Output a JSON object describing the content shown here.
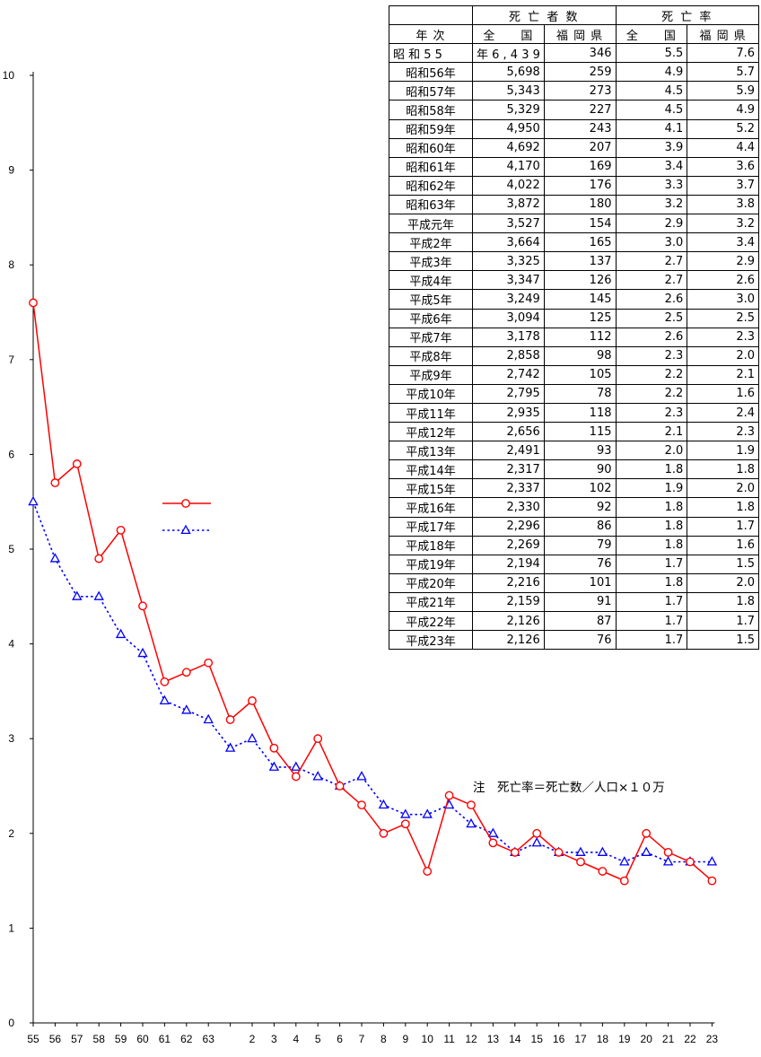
{
  "table": {
    "header_deaths": "死 亡 者 数",
    "header_rate": "死 亡 率",
    "col_year": "年 次",
    "col_nation": "全　　国",
    "col_fukuoka": "福 岡 県",
    "rows": [
      {
        "year": "昭 和 5 5",
        "nation": "年 6 , 4 3 9",
        "fukuoka": "346",
        "rate_nation": "5.5",
        "rate_fukuoka": "7.6"
      },
      {
        "year": "昭和56年",
        "nation": "5,698",
        "fukuoka": "259",
        "rate_nation": "4.9",
        "rate_fukuoka": "5.7"
      },
      {
        "year": "昭和57年",
        "nation": "5,343",
        "fukuoka": "273",
        "rate_nation": "4.5",
        "rate_fukuoka": "5.9"
      },
      {
        "year": "昭和58年",
        "nation": "5,329",
        "fukuoka": "227",
        "rate_nation": "4.5",
        "rate_fukuoka": "4.9"
      },
      {
        "year": "昭和59年",
        "nation": "4,950",
        "fukuoka": "243",
        "rate_nation": "4.1",
        "rate_fukuoka": "5.2"
      },
      {
        "year": "昭和60年",
        "nation": "4,692",
        "fukuoka": "207",
        "rate_nation": "3.9",
        "rate_fukuoka": "4.4"
      },
      {
        "year": "昭和61年",
        "nation": "4,170",
        "fukuoka": "169",
        "rate_nation": "3.4",
        "rate_fukuoka": "3.6"
      },
      {
        "year": "昭和62年",
        "nation": "4,022",
        "fukuoka": "176",
        "rate_nation": "3.3",
        "rate_fukuoka": "3.7"
      },
      {
        "year": "昭和63年",
        "nation": "3,872",
        "fukuoka": "180",
        "rate_nation": "3.2",
        "rate_fukuoka": "3.8"
      },
      {
        "year": "平成元年",
        "nation": "3,527",
        "fukuoka": "154",
        "rate_nation": "2.9",
        "rate_fukuoka": "3.2"
      },
      {
        "year": "平成2年",
        "nation": "3,664",
        "fukuoka": "165",
        "rate_nation": "3.0",
        "rate_fukuoka": "3.4"
      },
      {
        "year": "平成3年",
        "nation": "3,325",
        "fukuoka": "137",
        "rate_nation": "2.7",
        "rate_fukuoka": "2.9"
      },
      {
        "year": "平成4年",
        "nation": "3,347",
        "fukuoka": "126",
        "rate_nation": "2.7",
        "rate_fukuoka": "2.6"
      },
      {
        "year": "平成5年",
        "nation": "3,249",
        "fukuoka": "145",
        "rate_nation": "2.6",
        "rate_fukuoka": "3.0"
      },
      {
        "year": "平成6年",
        "nation": "3,094",
        "fukuoka": "125",
        "rate_nation": "2.5",
        "rate_fukuoka": "2.5"
      },
      {
        "year": "平成7年",
        "nation": "3,178",
        "fukuoka": "112",
        "rate_nation": "2.6",
        "rate_fukuoka": "2.3"
      },
      {
        "year": "平成8年",
        "nation": "2,858",
        "fukuoka": "98",
        "rate_nation": "2.3",
        "rate_fukuoka": "2.0"
      },
      {
        "year": "平成9年",
        "nation": "2,742",
        "fukuoka": "105",
        "rate_nation": "2.2",
        "rate_fukuoka": "2.1"
      },
      {
        "year": "平成10年",
        "nation": "2,795",
        "fukuoka": "78",
        "rate_nation": "2.2",
        "rate_fukuoka": "1.6"
      },
      {
        "year": "平成11年",
        "nation": "2,935",
        "fukuoka": "118",
        "rate_nation": "2.3",
        "rate_fukuoka": "2.4"
      },
      {
        "year": "平成12年",
        "nation": "2,656",
        "fukuoka": "115",
        "rate_nation": "2.1",
        "rate_fukuoka": "2.3"
      },
      {
        "year": "平成13年",
        "nation": "2,491",
        "fukuoka": "93",
        "rate_nation": "2.0",
        "rate_fukuoka": "1.9"
      },
      {
        "year": "平成14年",
        "nation": "2,317",
        "fukuoka": "90",
        "rate_nation": "1.8",
        "rate_fukuoka": "1.8"
      },
      {
        "year": "平成15年",
        "nation": "2,337",
        "fukuoka": "102",
        "rate_nation": "1.9",
        "rate_fukuoka": "2.0"
      },
      {
        "year": "平成16年",
        "nation": "2,330",
        "fukuoka": "92",
        "rate_nation": "1.8",
        "rate_fukuoka": "1.8"
      },
      {
        "year": "平成17年",
        "nation": "2,296",
        "fukuoka": "86",
        "rate_nation": "1.8",
        "rate_fukuoka": "1.7"
      },
      {
        "year": "平成18年",
        "nation": "2,269",
        "fukuoka": "79",
        "rate_nation": "1.8",
        "rate_fukuoka": "1.6"
      },
      {
        "year": "平成19年",
        "nation": "2,194",
        "fukuoka": "76",
        "rate_nation": "1.7",
        "rate_fukuoka": "1.5"
      },
      {
        "year": "平成20年",
        "nation": "2,216",
        "fukuoka": "101",
        "rate_nation": "1.8",
        "rate_fukuoka": "2.0"
      },
      {
        "year": "平成21年",
        "nation": "2,159",
        "fukuoka": "91",
        "rate_nation": "1.7",
        "rate_fukuoka": "1.8"
      },
      {
        "year": "平成22年",
        "nation": "2,126",
        "fukuoka": "87",
        "rate_nation": "1.7",
        "rate_fukuoka": "1.7"
      },
      {
        "year": "平成23年",
        "nation": "2,126",
        "fukuoka": "76",
        "rate_nation": "1.7",
        "rate_fukuoka": "1.5"
      }
    ]
  },
  "note": "注　死亡率＝死亡数／人口×１０万",
  "chart_data": {
    "type": "line",
    "title": "",
    "xlabel": "",
    "ylabel": "",
    "ylim": [
      0,
      10
    ],
    "yticks": [
      0,
      1,
      2,
      3,
      4,
      5,
      6,
      7,
      8,
      9,
      10
    ],
    "x": [
      "55",
      "56",
      "57",
      "58",
      "59",
      "60",
      "61",
      "62",
      "63",
      "",
      "2",
      "3",
      "4",
      "5",
      "6",
      "7",
      "8",
      "9",
      "10",
      "11",
      "12",
      "13",
      "14",
      "15",
      "16",
      "17",
      "18",
      "19",
      "20",
      "21",
      "22",
      "23"
    ],
    "grid": false,
    "legend_position": "left-middle",
    "series": [
      {
        "key": "fukuoka",
        "marker": "circle",
        "line": "solid",
        "color": "#ff0000",
        "values": [
          7.6,
          5.7,
          5.9,
          4.9,
          5.2,
          4.4,
          3.6,
          3.7,
          3.8,
          3.2,
          3.4,
          2.9,
          2.6,
          3.0,
          2.5,
          2.3,
          2.0,
          2.1,
          1.6,
          2.4,
          2.3,
          1.9,
          1.8,
          2.0,
          1.8,
          1.7,
          1.6,
          1.5,
          2.0,
          1.8,
          1.7,
          1.5
        ]
      },
      {
        "key": "nation",
        "marker": "triangle",
        "line": "dotted",
        "color": "#0000ff",
        "values": [
          5.5,
          4.9,
          4.5,
          4.5,
          4.1,
          3.9,
          3.4,
          3.3,
          3.2,
          2.9,
          3.0,
          2.7,
          2.7,
          2.6,
          2.5,
          2.6,
          2.3,
          2.2,
          2.2,
          2.3,
          2.1,
          2.0,
          1.8,
          1.9,
          1.8,
          1.8,
          1.8,
          1.7,
          1.8,
          1.7,
          1.7,
          1.7
        ]
      }
    ]
  }
}
